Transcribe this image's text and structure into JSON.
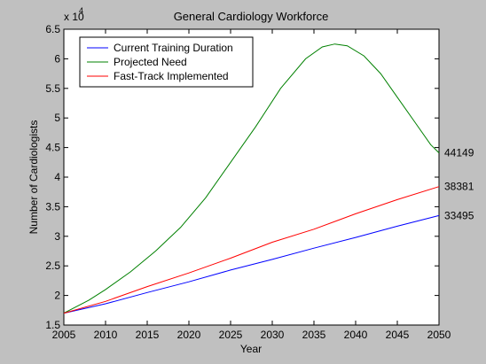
{
  "chart_data": {
    "type": "line",
    "title": "General Cardiology Workforce",
    "xlabel": "Year",
    "ylabel": "Number of Cardiologists",
    "y_exponent_label": "x 10",
    "y_exponent_power": "4",
    "xlim": [
      2005,
      2050
    ],
    "ylim": [
      1.5,
      6.5
    ],
    "x_ticks": [
      2005,
      2010,
      2015,
      2020,
      2025,
      2030,
      2035,
      2040,
      2045,
      2050
    ],
    "y_ticks": [
      1.5,
      2,
      2.5,
      3,
      3.5,
      4,
      4.5,
      5,
      5.5,
      6,
      6.5
    ],
    "y_tick_labels": [
      "1.5",
      "2",
      "2.5",
      "3",
      "3.5",
      "4",
      "4.5",
      "5",
      "5.5",
      "6",
      "6.5"
    ],
    "grid": false,
    "legend_position": "top-left",
    "series": [
      {
        "name": "Current Training Duration",
        "color": "#0000ff",
        "x": [
          2005,
          2010,
          2015,
          2020,
          2025,
          2030,
          2035,
          2040,
          2045,
          2050
        ],
        "values": [
          1.7,
          1.86,
          2.05,
          2.23,
          2.43,
          2.61,
          2.8,
          2.98,
          3.17,
          3.35
        ],
        "end_label": "33495"
      },
      {
        "name": "Projected Need",
        "color": "#008000",
        "x": [
          2005,
          2008,
          2010,
          2013,
          2016,
          2019,
          2022,
          2025,
          2028,
          2031,
          2034,
          2036,
          2037.5,
          2039,
          2041,
          2043,
          2045,
          2047,
          2049,
          2050
        ],
        "values": [
          1.7,
          1.92,
          2.1,
          2.4,
          2.75,
          3.15,
          3.65,
          4.25,
          4.85,
          5.5,
          6.0,
          6.2,
          6.25,
          6.22,
          6.05,
          5.75,
          5.35,
          4.95,
          4.55,
          4.41
        ],
        "end_label": "44149"
      },
      {
        "name": "Fast-Track Implemented",
        "color": "#ff0000",
        "x": [
          2005,
          2010,
          2015,
          2020,
          2025,
          2030,
          2035,
          2040,
          2045,
          2050
        ],
        "values": [
          1.7,
          1.9,
          2.15,
          2.38,
          2.63,
          2.9,
          3.12,
          3.38,
          3.62,
          3.84
        ],
        "end_label": "38381"
      }
    ]
  }
}
